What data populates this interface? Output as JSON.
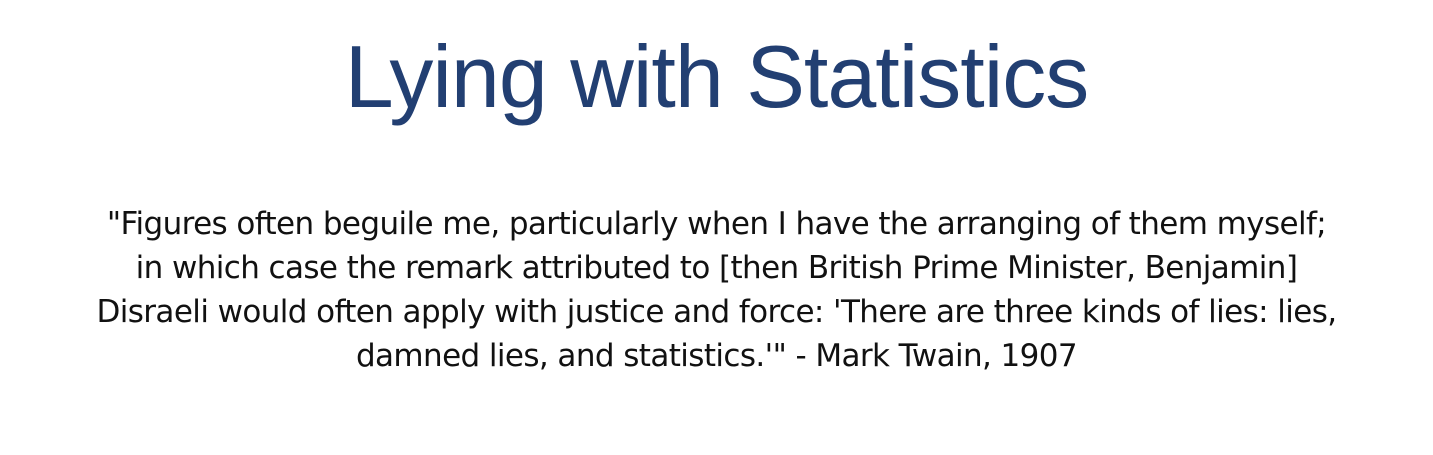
{
  "heading": {
    "title": "Lying with Statistics"
  },
  "quote": {
    "lines": [
      "\"Figures often beguile me, particularly when I have the arranging of them myself;",
      "in which case the remark attributed to [then British Prime Minister, Benjamin]",
      "Disraeli would often apply with justice and force: 'There are three kinds of lies: lies,",
      "damned lies, and statistics.'\" - Mark Twain, 1907"
    ]
  },
  "colors": {
    "title": "#223f72",
    "body_text": "#111111",
    "background": "#ffffff"
  }
}
